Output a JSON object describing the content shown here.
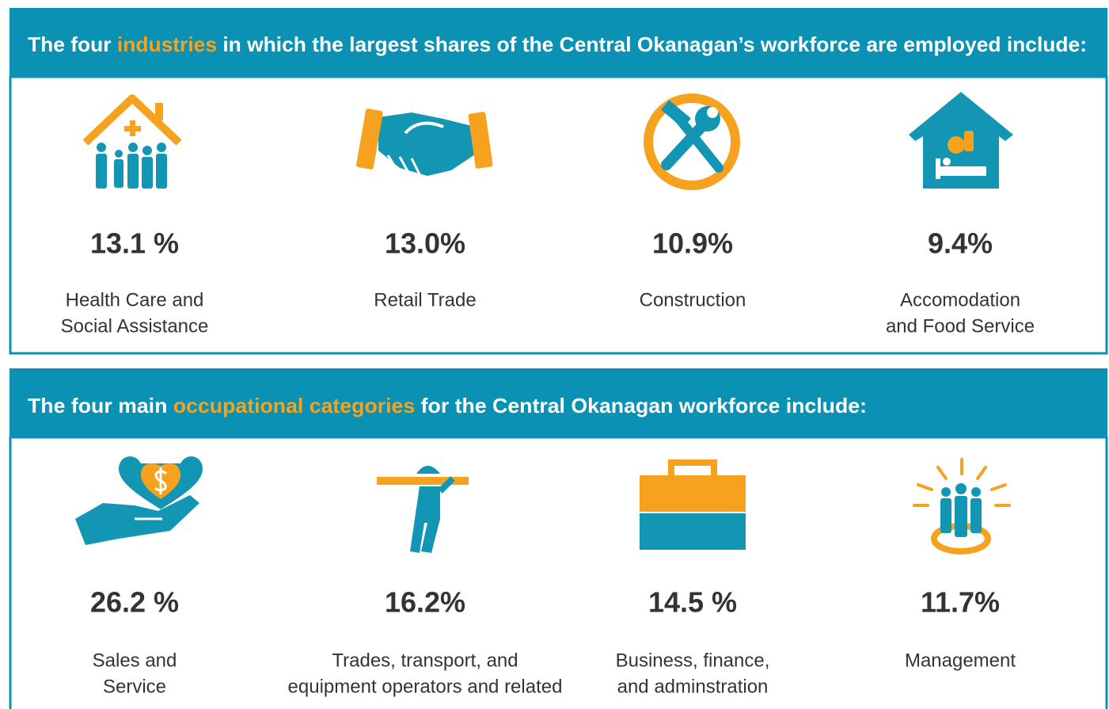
{
  "sections": [
    {
      "heading": {
        "before": "The four ",
        "highlight": "industries",
        "after": " in which the largest shares of the Central Okanagan’s workforce are employed include:"
      },
      "items": [
        {
          "value": "13.1 %",
          "label": [
            "Health Care and",
            "Social Assistance"
          ]
        },
        {
          "value": "13.0%",
          "label": [
            "Retail Trade"
          ]
        },
        {
          "value": "10.9%",
          "label": [
            "Construction"
          ]
        },
        {
          "value": "9.4%",
          "label": [
            "Accomodation",
            "and Food Service"
          ]
        }
      ]
    },
    {
      "heading": {
        "before": "The four main ",
        "highlight": "occupational categories",
        "after": " for the Central Okanagan workforce include:"
      },
      "items": [
        {
          "value": "26.2 %",
          "label": [
            "Sales and",
            "Service"
          ]
        },
        {
          "value": "16.2%",
          "label": [
            "Trades, transport, and",
            "equipment operators and related"
          ]
        },
        {
          "value": "14.5 %",
          "label": [
            "Business, finance,",
            "and adminstration"
          ]
        },
        {
          "value": "11.7%",
          "label": [
            "Management"
          ]
        }
      ]
    }
  ]
}
